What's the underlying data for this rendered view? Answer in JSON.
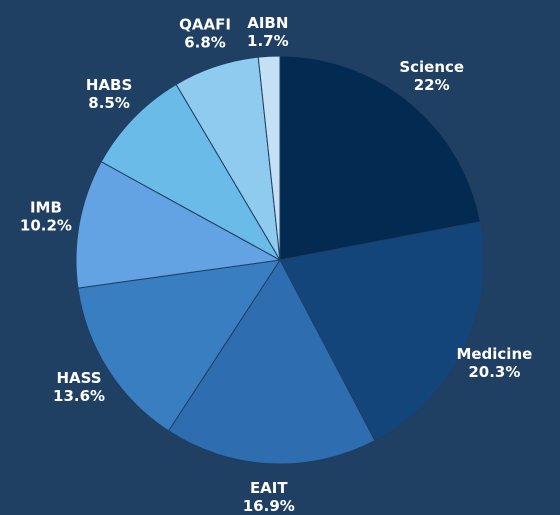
{
  "chart_data": {
    "type": "pie",
    "categories": [
      "Science",
      "Medicine",
      "EAIT",
      "HASS",
      "IMB",
      "HABS",
      "QAAFI",
      "AIBN"
    ],
    "values": [
      22,
      20.3,
      16.9,
      13.6,
      10.2,
      8.5,
      6.8,
      1.7
    ],
    "value_labels": [
      "22%",
      "20.3%",
      "16.9%",
      "13.6%",
      "10.2%",
      "8.5%",
      "6.8%",
      "1.7%"
    ],
    "colors": [
      "#032b52",
      "#14457a",
      "#2e6db0",
      "#3a7ec2",
      "#63a3e3",
      "#6bbbe8",
      "#8ecbef",
      "#c4e0f5"
    ]
  }
}
